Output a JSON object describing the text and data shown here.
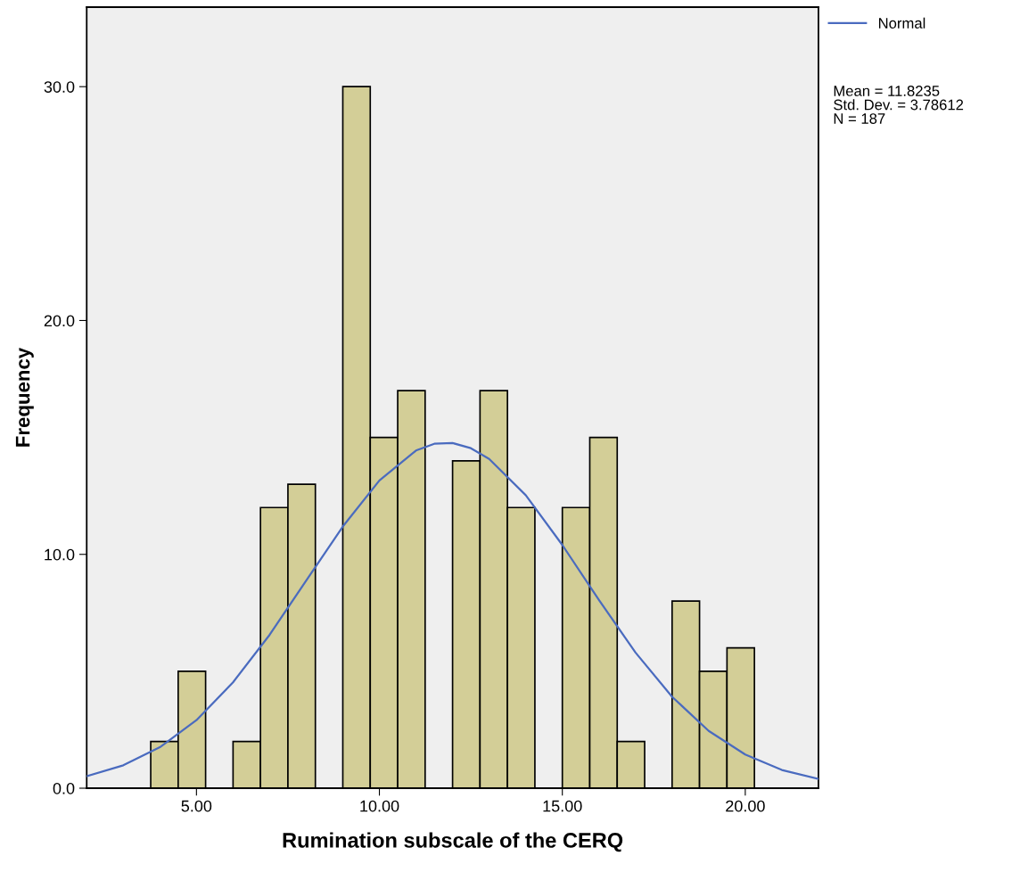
{
  "chart_data": {
    "type": "histogram",
    "xlabel": "Rumination subscale of the CERQ",
    "ylabel": "Frequency",
    "bins": [
      3.75,
      4.5,
      5.25,
      6,
      6.75,
      7.5,
      8.25,
      9,
      9.75,
      10.5,
      11.25,
      12,
      12.75,
      13.5,
      14.25,
      15,
      15.75,
      16.5,
      17.25,
      18,
      18.75,
      19.5,
      20.25
    ],
    "values": [
      2,
      5,
      0,
      2,
      12,
      13,
      0,
      30,
      15,
      17,
      0,
      14,
      17,
      12,
      0,
      12,
      15,
      2,
      0,
      8,
      5,
      6
    ],
    "color": "#d3ce97",
    "series": [
      {
        "name": "Normal",
        "type": "line",
        "color": "#4a6bbf",
        "x": [
          2,
          3,
          4,
          5,
          6,
          7,
          8,
          9,
          10,
          11,
          11.5,
          12,
          12.5,
          13,
          14,
          15,
          16,
          17,
          18,
          19,
          20,
          21,
          22
        ],
        "values": [
          0.51,
          0.98,
          1.75,
          2.91,
          4.53,
          6.56,
          8.88,
          11.19,
          13.16,
          14.44,
          14.73,
          14.76,
          14.54,
          14.08,
          12.53,
          10.4,
          8.05,
          5.8,
          3.91,
          2.45,
          1.44,
          0.78,
          0.4
        ]
      }
    ],
    "xlim": [
      2,
      22
    ],
    "xticks": [
      {
        "value": 5,
        "label": "5.00"
      },
      {
        "value": 10,
        "label": "10.00"
      },
      {
        "value": 15,
        "label": "15.00"
      },
      {
        "value": 20,
        "label": "20.00"
      }
    ],
    "ylim": [
      0,
      33.4
    ],
    "yticks": [
      {
        "value": 0,
        "label": "0.0"
      },
      {
        "value": 10,
        "label": "10.0"
      },
      {
        "value": 20,
        "label": "20.0"
      },
      {
        "value": 30,
        "label": "30.0"
      }
    ],
    "legend": "right",
    "annotations": [
      "Mean = 11.8235\nStd. Dev. = 3.78612\nN = 187"
    ]
  }
}
